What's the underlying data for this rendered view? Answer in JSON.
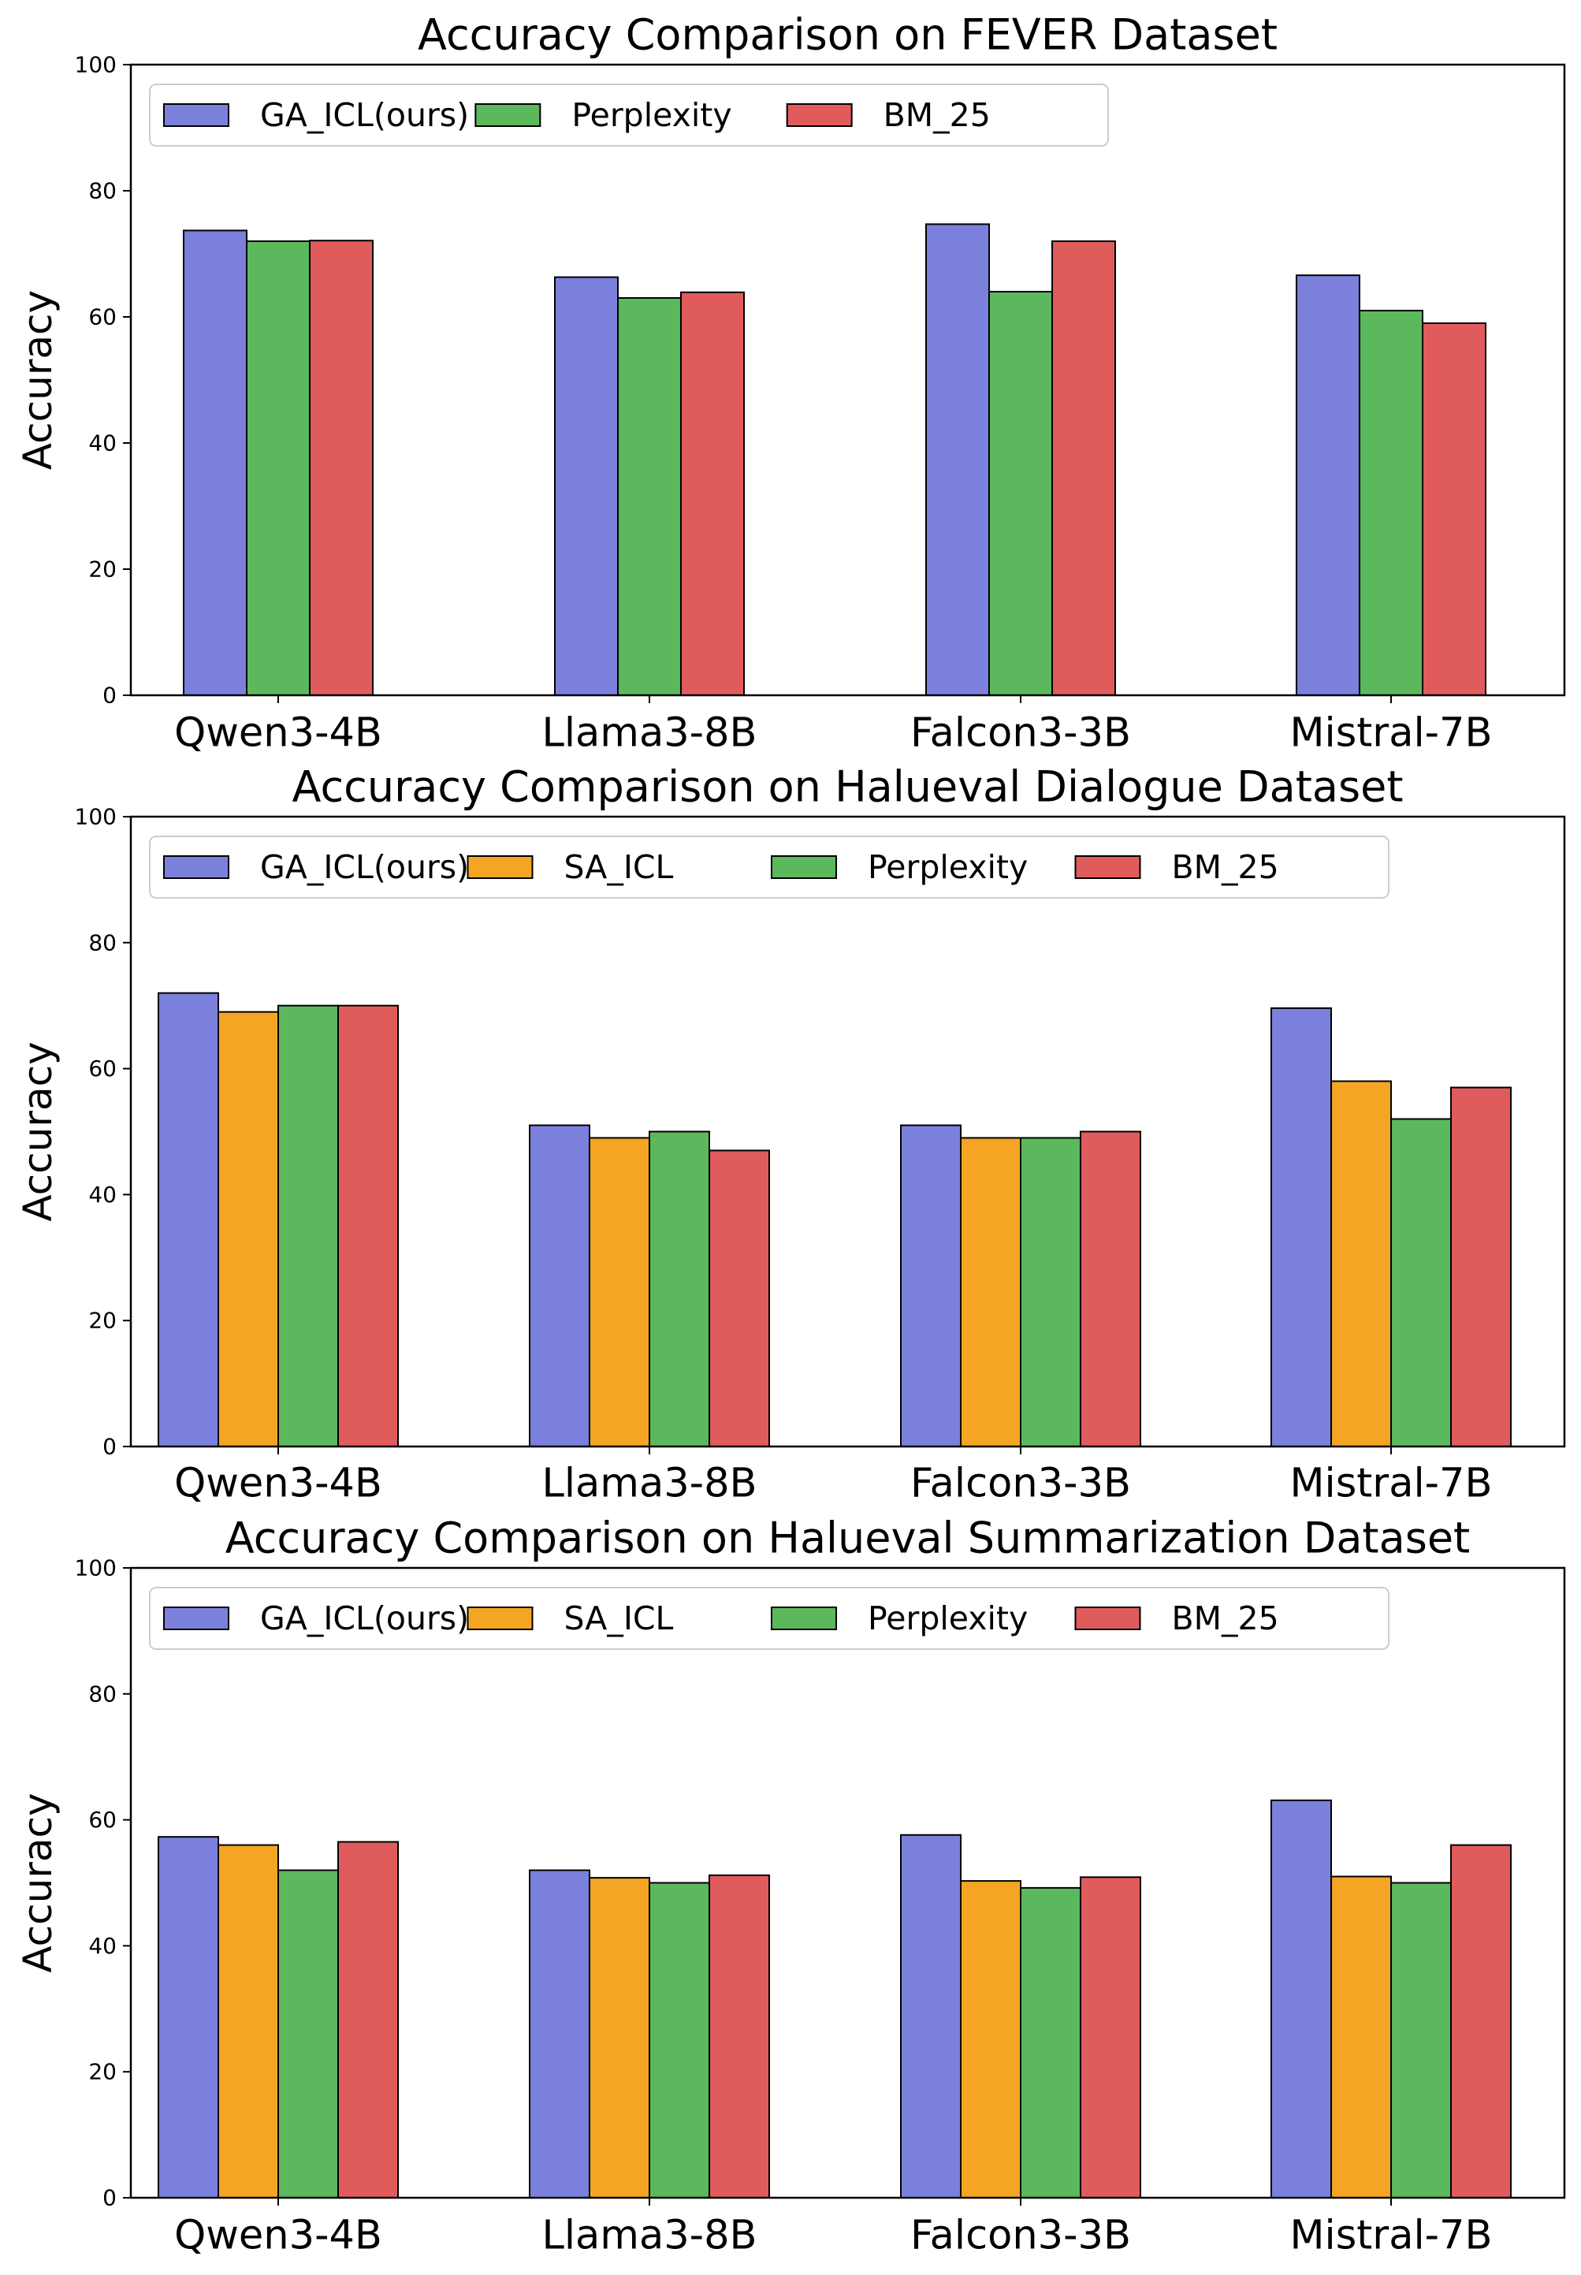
{
  "colors": {
    "GA_ICL(ours)": "#7b80dd",
    "SA_ICL": "#f4a523",
    "Perplexity": "#5cb85c",
    "BM_25": "#e05c5c"
  },
  "chart_data": [
    {
      "type": "bar",
      "title": "Accuracy Comparison on FEVER Dataset",
      "xlabel": "",
      "ylabel": "Accuracy",
      "ylim": [
        0,
        100
      ],
      "yticks": [
        "0",
        "20",
        "40",
        "60",
        "80",
        "100"
      ],
      "grid": false,
      "legend": "top-left",
      "categories": [
        "Qwen3-4B",
        "Llama3-8B",
        "Falcon3-3B",
        "Mistral-7B"
      ],
      "series": [
        {
          "name": "GA_ICL(ours)",
          "values": [
            73.7,
            66.3,
            74.7,
            66.6
          ]
        },
        {
          "name": "Perplexity",
          "values": [
            72.0,
            63.0,
            64.0,
            61.0
          ]
        },
        {
          "name": "BM_25",
          "values": [
            72.1,
            63.9,
            72.0,
            59.0
          ]
        }
      ]
    },
    {
      "type": "bar",
      "title": "Accuracy Comparison on Halueval Dialogue Dataset",
      "xlabel": "",
      "ylabel": "Accuracy",
      "ylim": [
        0,
        100
      ],
      "yticks": [
        "0",
        "20",
        "40",
        "60",
        "80",
        "100"
      ],
      "grid": false,
      "legend": "top-left",
      "categories": [
        "Qwen3-4B",
        "Llama3-8B",
        "Falcon3-3B",
        "Mistral-7B"
      ],
      "series": [
        {
          "name": "GA_ICL(ours)",
          "values": [
            72.0,
            51.0,
            51.0,
            69.6
          ]
        },
        {
          "name": "SA_ICL",
          "values": [
            69.0,
            49.0,
            49.0,
            58.0
          ]
        },
        {
          "name": "Perplexity",
          "values": [
            70.0,
            50.0,
            49.0,
            52.0
          ]
        },
        {
          "name": "BM_25",
          "values": [
            70.0,
            47.0,
            50.0,
            57.0
          ]
        }
      ]
    },
    {
      "type": "bar",
      "title": "Accuracy Comparison on Halueval Summarization Dataset",
      "xlabel": "",
      "ylabel": "Accuracy",
      "ylim": [
        0,
        100
      ],
      "yticks": [
        "0",
        "20",
        "40",
        "60",
        "80",
        "100"
      ],
      "grid": false,
      "legend": "top-left",
      "categories": [
        "Qwen3-4B",
        "Llama3-8B",
        "Falcon3-3B",
        "Mistral-7B"
      ],
      "series": [
        {
          "name": "GA_ICL(ours)",
          "values": [
            57.3,
            52.0,
            57.6,
            63.1
          ]
        },
        {
          "name": "SA_ICL",
          "values": [
            56.0,
            50.8,
            50.3,
            51.0
          ]
        },
        {
          "name": "Perplexity",
          "values": [
            52.0,
            50.0,
            49.2,
            50.0
          ]
        },
        {
          "name": "BM_25",
          "values": [
            56.5,
            51.2,
            50.9,
            56.0
          ]
        }
      ]
    }
  ]
}
